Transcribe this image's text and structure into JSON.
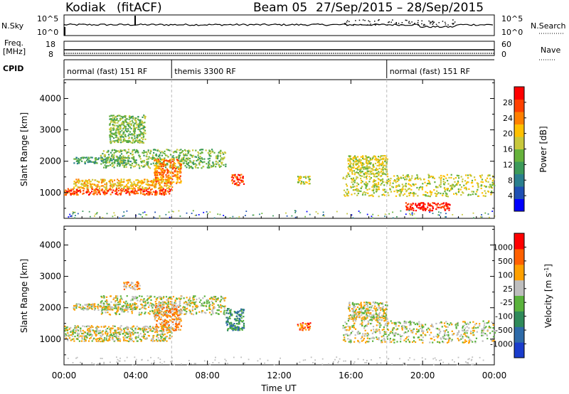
{
  "header": {
    "station": "Kodiak",
    "fit": "(fitACF)",
    "beam": "Beam 05",
    "dates": "27/Sep/2015 – 28/Sep/2015"
  },
  "strip_nsky": {
    "left_label": "N.Sky",
    "right_label": "N.Search",
    "left_ticks": [
      "10^5",
      "10^0"
    ],
    "right_ticks": [
      "10^5",
      "10^0"
    ]
  },
  "strip_freq": {
    "left_label_1": "Freq.",
    "left_label_2": "[MHz]",
    "right_label": "Nave",
    "left_ticks": [
      "18",
      "8"
    ],
    "right_ticks": [
      "60",
      "0"
    ]
  },
  "strip_cpid": {
    "label": "CPID",
    "segments": [
      {
        "name": "normal (fast) 151 RF",
        "start_h": 0,
        "end_h": 6
      },
      {
        "name": "themis 3300 RF",
        "start_h": 6,
        "end_h": 18
      },
      {
        "name": "normal (fast) 151 RF",
        "start_h": 18,
        "end_h": 24
      }
    ]
  },
  "chart_data": [
    {
      "type": "heatmap",
      "quantity": "power",
      "ylabel": "Slant Range [km]",
      "ylim": [
        180,
        4600
      ],
      "yticks": [
        1000,
        2000,
        3000,
        4000
      ],
      "xlim": [
        0,
        24
      ],
      "colorbar_label": "Power [dB]",
      "colorbar_ticks": [
        "28",
        "24",
        "20",
        "16",
        "12",
        "8",
        "4"
      ],
      "colorbar_colors": [
        "#0000ff",
        "#1e4fb4",
        "#2a7f8e",
        "#3c9a5a",
        "#66b23c",
        "#c8c83c",
        "#ffc000",
        "#ff8000",
        "#ff4000",
        "#ff0000"
      ],
      "scatter_bands": [
        {
          "t0": 0.0,
          "t1": 6.0,
          "r0": 950,
          "r1": 1150,
          "level": 8
        },
        {
          "t0": 0.5,
          "t1": 6.0,
          "r0": 1150,
          "r1": 1450,
          "level": 6
        },
        {
          "t0": 0.5,
          "t1": 4.0,
          "r0": 1950,
          "r1": 2150,
          "level": 3
        },
        {
          "t0": 2.0,
          "t1": 9.0,
          "r0": 1800,
          "r1": 2400,
          "level": 4
        },
        {
          "t0": 2.5,
          "t1": 4.5,
          "r0": 2600,
          "r1": 3500,
          "level": 4
        },
        {
          "t0": 5.0,
          "t1": 6.5,
          "r0": 1300,
          "r1": 2100,
          "level": 7
        },
        {
          "t0": 9.3,
          "t1": 10.0,
          "r0": 1250,
          "r1": 1600,
          "level": 8
        },
        {
          "t0": 13.0,
          "t1": 13.7,
          "r0": 1300,
          "r1": 1550,
          "level": 5
        },
        {
          "t0": 15.5,
          "t1": 24.0,
          "r0": 900,
          "r1": 1600,
          "level": 5
        },
        {
          "t0": 15.8,
          "t1": 18.0,
          "r0": 1600,
          "r1": 2200,
          "level": 5
        },
        {
          "t0": 19.0,
          "t1": 21.5,
          "r0": 450,
          "r1": 700,
          "level": 9
        }
      ]
    },
    {
      "type": "heatmap",
      "quantity": "velocity",
      "ylabel": "Slant Range [km]",
      "ylim": [
        180,
        4600
      ],
      "yticks": [
        1000,
        2000,
        3000,
        4000
      ],
      "xlim": [
        0,
        24
      ],
      "xticks": [
        "00:00",
        "04:00",
        "08:00",
        "12:00",
        "16:00",
        "20:00",
        "00:00"
      ],
      "xlabel": "Time UT",
      "colorbar_label": "Velocity [m s^-1]",
      "colorbar_ticks": [
        "1000",
        "500",
        "100",
        "25",
        "-25",
        "-100",
        "-500",
        "-1000"
      ],
      "colorbar_colors": [
        "#1a3ccc",
        "#2e6aa8",
        "#2f8a5a",
        "#5ab23c",
        "#bebebe",
        "#ffa000",
        "#ff6000",
        "#ff0000"
      ],
      "scatter_bands": [
        {
          "t0": 0.0,
          "t1": 6.0,
          "r0": 950,
          "r1": 1450,
          "level": 4
        },
        {
          "t0": 0.5,
          "t1": 4.0,
          "r0": 1950,
          "r1": 2150,
          "level": 4
        },
        {
          "t0": 2.0,
          "t1": 9.0,
          "r0": 1800,
          "r1": 2400,
          "level": 4
        },
        {
          "t0": 3.3,
          "t1": 4.2,
          "r0": 2600,
          "r1": 2850,
          "level": 5
        },
        {
          "t0": 5.0,
          "t1": 6.5,
          "r0": 1300,
          "r1": 2100,
          "level": 5
        },
        {
          "t0": 9.0,
          "t1": 10.0,
          "r0": 1300,
          "r1": 2000,
          "level": 2
        },
        {
          "t0": 13.0,
          "t1": 13.7,
          "r0": 1300,
          "r1": 1550,
          "level": 6
        },
        {
          "t0": 15.5,
          "t1": 24.0,
          "r0": 900,
          "r1": 1600,
          "level": 4
        },
        {
          "t0": 15.8,
          "t1": 18.0,
          "r0": 1600,
          "r1": 2200,
          "level": 4
        }
      ]
    }
  ]
}
